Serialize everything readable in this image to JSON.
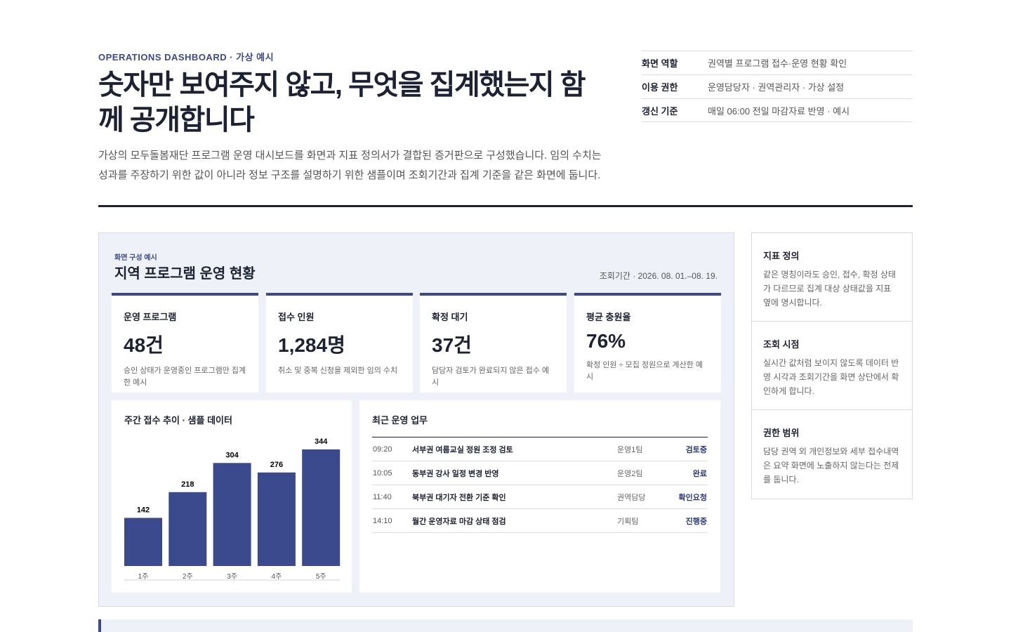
{
  "header": {
    "eyebrow": "OPERATIONS DASHBOARD · 가상 예시",
    "title": "숫자만 보여주지 않고, 무엇을 집계했는지 함께 공개합니다",
    "lead": "가상의 모두돌봄재단 프로그램 운영 대시보드를 화면과 지표 정의서가 결합된 증거판으로 구성했습니다. 임의 수치는 성과를 주장하기 위한 값이 아니라 정보 구조를 설명하기 위한 샘플이며 조회기간과 집계 기준을 같은 화면에 둡니다."
  },
  "meta": [
    {
      "label": "화면 역할",
      "value": "권역별 프로그램 접수·운영 현황 확인"
    },
    {
      "label": "이용 권한",
      "value": "운영담당자 · 권역관리자 · 가상 설정"
    },
    {
      "label": "갱신 기준",
      "value": "매일 06:00 전일 마감자료 반영 · 예시"
    }
  ],
  "panel": {
    "eyebrow": "화면 구성 예시",
    "title": "지역 프로그램 운영 현황",
    "period": "조회기간 · 2026. 08. 01.–08. 19.",
    "kpis": [
      {
        "label": "운영 프로그램",
        "value": "48건",
        "note": "승인 상태가 운영중인 프로그램만 집계한 예시"
      },
      {
        "label": "접수 인원",
        "value": "1,284명",
        "note": "취소 및 중복 신청을 제외한 임의 수치"
      },
      {
        "label": "확정 대기",
        "value": "37건",
        "note": "담당자 검토가 완료되지 않은 접수 예시"
      },
      {
        "label": "평균 충원율",
        "value": "76%",
        "note": "확정 인원 ÷ 모집 정원으로 계산한 예시"
      }
    ],
    "chart": {
      "type": "bar",
      "title": "주간 접수 추이 · 샘플 데이터",
      "categories": [
        "1주",
        "2주",
        "3주",
        "4주",
        "5주"
      ],
      "values": [
        142,
        218,
        304,
        276,
        344
      ],
      "color": "#3a4a8c"
    },
    "tasks": {
      "title": "최근 운영 업무",
      "rows": [
        {
          "time": "09:20",
          "task": "서부권 여름교실 정원 조정 검토",
          "team": "운영1팀",
          "status": "검토중"
        },
        {
          "time": "10:05",
          "task": "동부권 강사 일정 변경 반영",
          "team": "운영2팀",
          "status": "완료"
        },
        {
          "time": "11:40",
          "task": "북부권 대기자 전환 기준 확인",
          "team": "권역담당",
          "status": "확인요청"
        },
        {
          "time": "14:10",
          "task": "월간 운영자료 마감 상태 점검",
          "team": "기획팀",
          "status": "진행중"
        }
      ]
    }
  },
  "side": [
    {
      "title": "지표 정의",
      "text": "같은 명칭이라도 승인, 접수, 확정 상태가 다르므로 집계 대상 상태값을 지표 옆에 명시합니다."
    },
    {
      "title": "조회 시점",
      "text": "실시간 값처럼 보이지 않도록 데이터 반영 시각과 조회기간을 화면 상단에서 확인하게 합니다."
    },
    {
      "title": "권한 범위",
      "text": "담당 권역 외 개인정보와 세부 접수내역은 요약 화면에 노출하지 않는다는 전제를 둡니다."
    }
  ]
}
